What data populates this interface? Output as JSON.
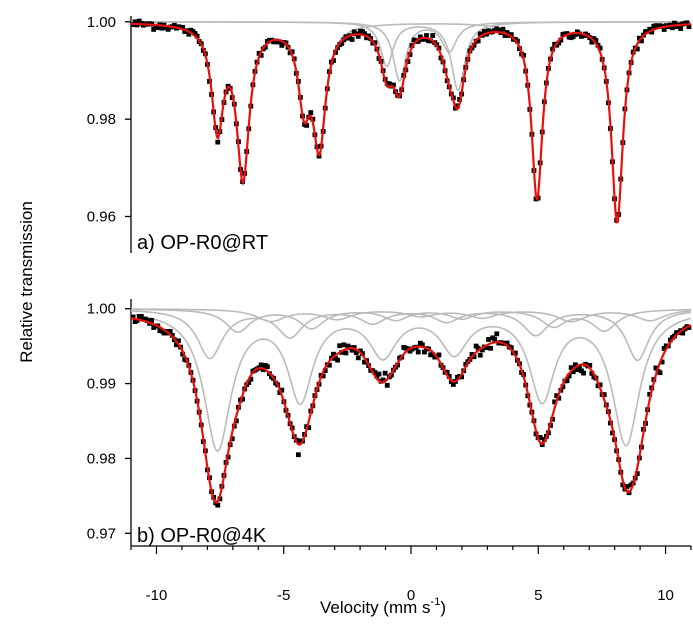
{
  "chart_data": {
    "type": "scatter",
    "ylabel": "Relative transmission",
    "xlabel_main": "Velocity (mm s",
    "xlabel_sup": "-1",
    "xlabel_close": ")",
    "xlim": [
      -11,
      11
    ],
    "xticks": [
      {
        "value": -10,
        "label": "-10"
      },
      {
        "value": -5,
        "label": "-5"
      },
      {
        "value": 0,
        "label": "0"
      },
      {
        "value": 5,
        "label": "5"
      },
      {
        "value": 10,
        "label": "10"
      }
    ],
    "colors": {
      "data": "#000000",
      "fit": "#e8100c",
      "subspectra": "#bbbbbb"
    },
    "panels": [
      {
        "label": "a) OP-R0@RT",
        "ylim": [
          0.9525,
          1.0012
        ],
        "yticks": [
          {
            "value": 1.0,
            "label": "1.00"
          },
          {
            "value": 0.98,
            "label": "0.98"
          },
          {
            "value": 0.96,
            "label": "0.96"
          }
        ],
        "baseline": 1.0,
        "noise": 0.00045,
        "subspectra": [
          {
            "lines": [
              [
                -7.6,
                0.021,
                0.28
              ],
              [
                -6.6,
                0.031,
                0.3
              ],
              [
                -4.2,
                0.015,
                0.28
              ],
              [
                -3.6,
                0.024,
                0.3
              ],
              [
                4.95,
                0.036,
                0.26
              ],
              [
                8.1,
                0.041,
                0.27
              ]
            ]
          },
          {
            "lines": [
              [
                -0.95,
                0.009,
                0.3
              ],
              [
                1.85,
                0.014,
                0.32
              ]
            ]
          },
          {
            "lines": [
              [
                -0.45,
                0.012,
                0.3
              ],
              [
                1.5,
                0.006,
                0.35
              ]
            ]
          }
        ]
      },
      {
        "label": "b) OP-R0@4K",
        "ylim": [
          0.9683,
          1.0013
        ],
        "yticks": [
          {
            "value": 1.0,
            "label": "1.00"
          },
          {
            "value": 0.99,
            "label": "0.99"
          },
          {
            "value": 0.98,
            "label": "0.98"
          },
          {
            "value": 0.97,
            "label": "0.97"
          }
        ],
        "baseline": 1.0,
        "noise": 0.0004,
        "subspectra": [
          {
            "lines": [
              [
                -7.6,
                0.0185,
                0.65
              ],
              [
                -4.35,
                0.0117,
                0.6
              ],
              [
                -1.1,
                0.0058,
                0.65
              ],
              [
                1.7,
                0.0054,
                0.65
              ],
              [
                5.15,
                0.0117,
                0.6
              ],
              [
                8.45,
                0.0178,
                0.65
              ]
            ]
          },
          {
            "lines": [
              [
                -7.9,
                0.0065,
                0.6
              ],
              [
                -4.75,
                0.0036,
                0.6
              ],
              [
                -1.5,
                0.0018,
                0.6
              ],
              [
                1.4,
                0.0016,
                0.6
              ],
              [
                4.9,
                0.0034,
                0.6
              ],
              [
                8.9,
                0.0068,
                0.55
              ]
            ]
          },
          {
            "lines": [
              [
                -6.8,
                0.003,
                0.6
              ],
              [
                -3.9,
                0.0025,
                0.6
              ],
              [
                -0.6,
                0.0014,
                0.6
              ],
              [
                2.0,
                0.0012,
                0.6
              ],
              [
                5.6,
                0.0022,
                0.6
              ],
              [
                7.6,
                0.0028,
                0.6
              ]
            ]
          },
          {
            "lines": [
              [
                -5.5,
                0.0016,
                0.7
              ],
              [
                -2.9,
                0.0013,
                0.7
              ],
              [
                0.4,
                0.0009,
                0.7
              ],
              [
                2.8,
                0.0011,
                0.7
              ],
              [
                6.3,
                0.0016,
                0.7
              ],
              [
                9.4,
                0.0015,
                0.7
              ]
            ]
          }
        ]
      }
    ]
  }
}
